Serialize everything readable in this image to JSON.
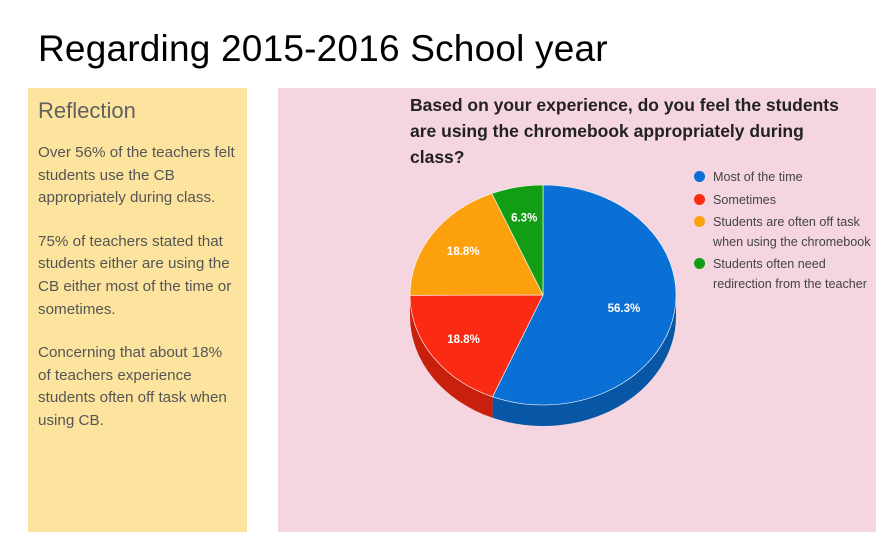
{
  "slide": {
    "title": "Regarding 2015-2016 School year"
  },
  "reflection": {
    "heading": "Reflection",
    "paragraphs": [
      "Over 56% of the teachers felt students use the CB appropriately during class.",
      "75% of teachers stated that  students either are using the CB either most of the time or sometimes.",
      "Concerning that about 18% of teachers experience students often off task when using CB."
    ]
  },
  "chart_data": {
    "type": "pie",
    "title": "Based on your experience, do you feel the students are using the chromebook appropriately during class?",
    "legend_position": "right",
    "slices": [
      {
        "name": "Most of the time",
        "value": 56.3,
        "label": "56.3%",
        "color": "#0b70d6",
        "side_color": "#0757a6"
      },
      {
        "name": "Sometimes",
        "value": 18.8,
        "label": "18.8%",
        "color": "#fa2b12",
        "side_color": "#c8200c"
      },
      {
        "name": "Students are often off task when using the chromebook",
        "value": 18.8,
        "label": "18.8%",
        "color": "#fca10d",
        "side_color": "#c97f07"
      },
      {
        "name": "Students often need redirection from the teacher",
        "value": 6.3,
        "label": "6.3%",
        "color": "#129e14",
        "side_color": "#0c7a0e"
      }
    ]
  }
}
